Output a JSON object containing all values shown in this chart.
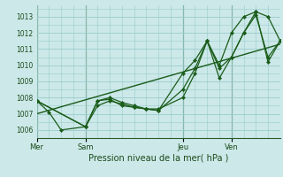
{
  "background_color": "#cce8e8",
  "grid_color": "#99cccc",
  "line_color": "#1a5c1a",
  "marker_color": "#1a5c1a",
  "title": "Pression niveau de la mer( hPa )",
  "ylim": [
    1005.5,
    1013.7
  ],
  "yticks": [
    1006,
    1007,
    1008,
    1009,
    1010,
    1011,
    1012,
    1013
  ],
  "day_labels": [
    "Mer",
    "Sam",
    "Jeu",
    "Ven"
  ],
  "day_positions": [
    0,
    24,
    72,
    96
  ],
  "xlim": [
    0,
    120
  ],
  "series1_x": [
    0,
    6,
    12,
    24,
    30,
    36,
    42,
    48,
    54,
    60,
    72,
    78,
    84,
    90,
    96,
    102,
    108,
    114,
    120
  ],
  "series1_y": [
    1007.8,
    1007.1,
    1006.0,
    1006.2,
    1007.8,
    1008.0,
    1007.7,
    1007.5,
    1007.3,
    1007.2,
    1009.5,
    1010.3,
    1011.5,
    1010.0,
    1012.0,
    1013.0,
    1013.3,
    1013.0,
    1011.5
  ],
  "series2_x": [
    0,
    24,
    30,
    36,
    42,
    48,
    54,
    60,
    72,
    78,
    84,
    90,
    96,
    102,
    108,
    114,
    120
  ],
  "series2_y": [
    1007.8,
    1006.2,
    1007.8,
    1007.9,
    1007.5,
    1007.4,
    1007.3,
    1007.3,
    1008.0,
    1009.5,
    1011.5,
    1009.2,
    1010.5,
    1012.0,
    1013.3,
    1010.2,
    1011.5
  ],
  "series3_x": [
    0,
    24,
    30,
    36,
    42,
    48,
    54,
    60,
    72,
    78,
    84,
    90,
    96,
    102,
    108,
    114,
    120
  ],
  "series3_y": [
    1007.8,
    1006.2,
    1007.5,
    1007.8,
    1007.6,
    1007.4,
    1007.3,
    1007.2,
    1008.5,
    1009.8,
    1011.5,
    1009.8,
    1010.5,
    1012.0,
    1013.1,
    1010.5,
    1011.5
  ],
  "trend_x": [
    0,
    120
  ],
  "trend_y": [
    1007.0,
    1011.3
  ],
  "vline_color": "#2a5a2a",
  "spine_color": "#2a5a2a"
}
